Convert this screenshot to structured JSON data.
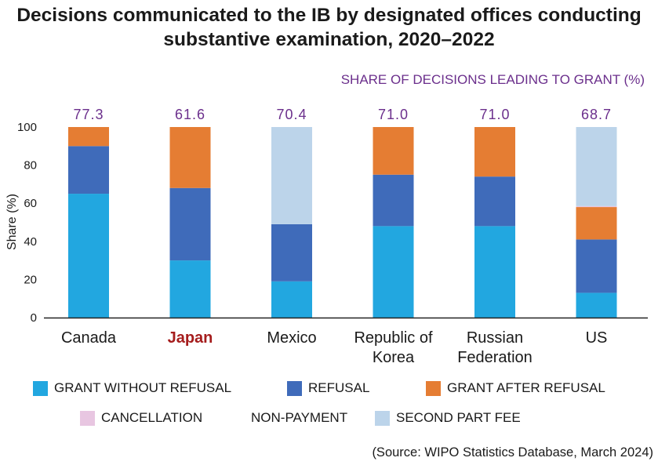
{
  "chart_data": {
    "type": "bar",
    "stacked": true,
    "title": "Decisions communicated to the IB by designated offices conducting substantive examination, 2020–2022",
    "subtitle": "SHARE OF DECISIONS LEADING TO GRANT (%)",
    "xlabel": "",
    "ylabel": "Share (%)",
    "ylim": [
      0,
      100
    ],
    "yticks": [
      "0",
      "20",
      "40",
      "60",
      "80",
      "100"
    ],
    "grid": false,
    "legend_position": "bottom",
    "categories": [
      [
        "Canada"
      ],
      [
        "Japan"
      ],
      [
        "Mexico"
      ],
      [
        "Republic of",
        "Korea"
      ],
      [
        "Russian",
        "Federation"
      ],
      [
        "US"
      ]
    ],
    "highlighted_category": "Japan",
    "grant_share_labels": [
      "77.3",
      "61.6",
      "70.4",
      "71.0",
      "71.0",
      "68.7"
    ],
    "series": [
      {
        "name": "GRANT WITHOUT REFUSAL",
        "color": "#22a7e0",
        "values": [
          65,
          30,
          19,
          48,
          48,
          13
        ]
      },
      {
        "name": "REFUSAL",
        "color": "#3f6bba",
        "values": [
          25,
          38,
          30,
          27,
          26,
          28
        ]
      },
      {
        "name": "GRANT AFTER REFUSAL",
        "color": "#e57d33",
        "values": [
          10,
          32,
          0,
          25,
          26,
          17
        ]
      },
      {
        "name": "CANCELLATION",
        "color": "#e8c6e1",
        "values": [
          0,
          0,
          0,
          0,
          0,
          0.5
        ]
      },
      {
        "name": "NON-PAYMENT",
        "color": "#ffffff",
        "values": [
          0,
          0,
          0,
          0,
          0,
          0
        ]
      },
      {
        "name": "SECOND PART FEE",
        "color": "#bcd4ea",
        "values": [
          0,
          0,
          51,
          0,
          0,
          41.5
        ]
      }
    ]
  },
  "source": "(Source: WIPO Statistics Database, March  2024)"
}
